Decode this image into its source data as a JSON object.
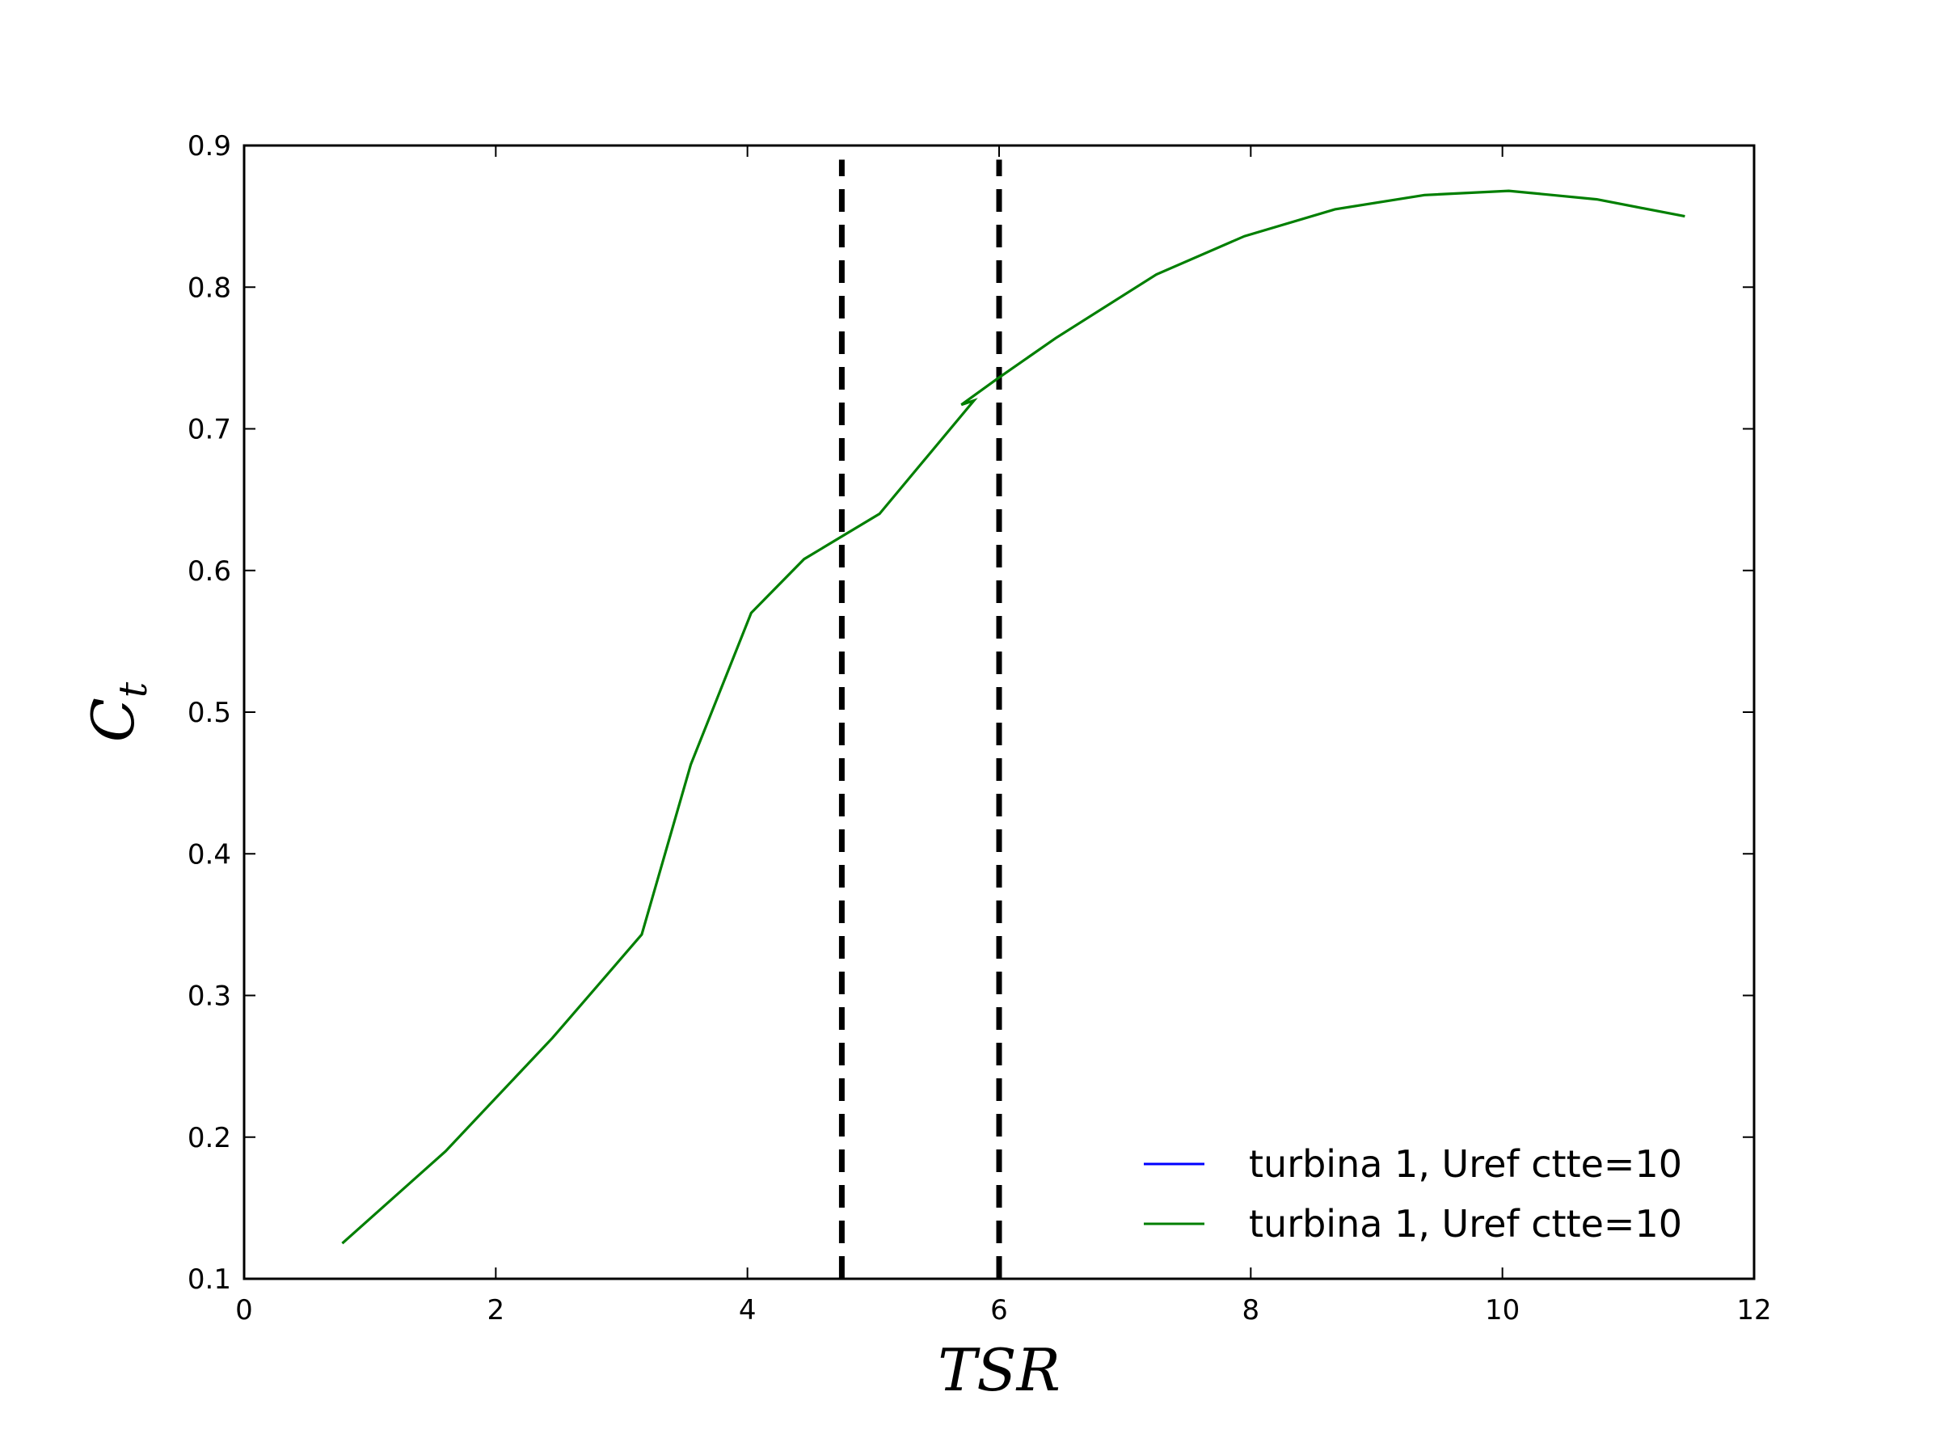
{
  "chart_data": {
    "type": "line",
    "xlabel": "TSR",
    "ylabel_main": "C",
    "ylabel_sub": "t",
    "xlim": [
      0,
      12
    ],
    "ylim": [
      0.1,
      0.9
    ],
    "xticks": [
      0,
      2,
      4,
      6,
      8,
      10,
      12
    ],
    "yticks": [
      0.1,
      0.2,
      0.3,
      0.4,
      0.5,
      0.6,
      0.7,
      0.8,
      0.9
    ],
    "xtick_labels": [
      "0",
      "2",
      "4",
      "6",
      "8",
      "10",
      "12"
    ],
    "ytick_labels": [
      "0.1",
      "0.2",
      "0.3",
      "0.4",
      "0.5",
      "0.6",
      "0.7",
      "0.8",
      "0.9"
    ],
    "grid": false,
    "legend_position": "lower-right",
    "series": [
      {
        "name": "turbina 1, Uref ctte=10",
        "color": "#0000ff",
        "points": []
      },
      {
        "name": "turbina 1, Uref ctte=10",
        "color": "#007f00",
        "points": [
          [
            0.78,
            0.125
          ],
          [
            1.6,
            0.19
          ],
          [
            2.45,
            0.27
          ],
          [
            3.16,
            0.343
          ],
          [
            3.55,
            0.463
          ],
          [
            4.03,
            0.57
          ],
          [
            4.45,
            0.608
          ],
          [
            5.05,
            0.64
          ],
          [
            5.8,
            0.72
          ],
          [
            5.7,
            0.717
          ],
          [
            5.98,
            0.735
          ],
          [
            6.45,
            0.764
          ],
          [
            7.25,
            0.809
          ],
          [
            7.95,
            0.836
          ],
          [
            8.67,
            0.855
          ],
          [
            9.38,
            0.865
          ],
          [
            10.05,
            0.868
          ],
          [
            10.75,
            0.862
          ],
          [
            11.45,
            0.85
          ]
        ]
      }
    ],
    "vlines": [
      {
        "x": 4.75,
        "style": "dashed",
        "color": "#000000",
        "y_range": [
          0.1,
          0.89
        ]
      },
      {
        "x": 6.0,
        "style": "dashed",
        "color": "#000000",
        "y_range": [
          0.1,
          0.89
        ]
      }
    ]
  }
}
